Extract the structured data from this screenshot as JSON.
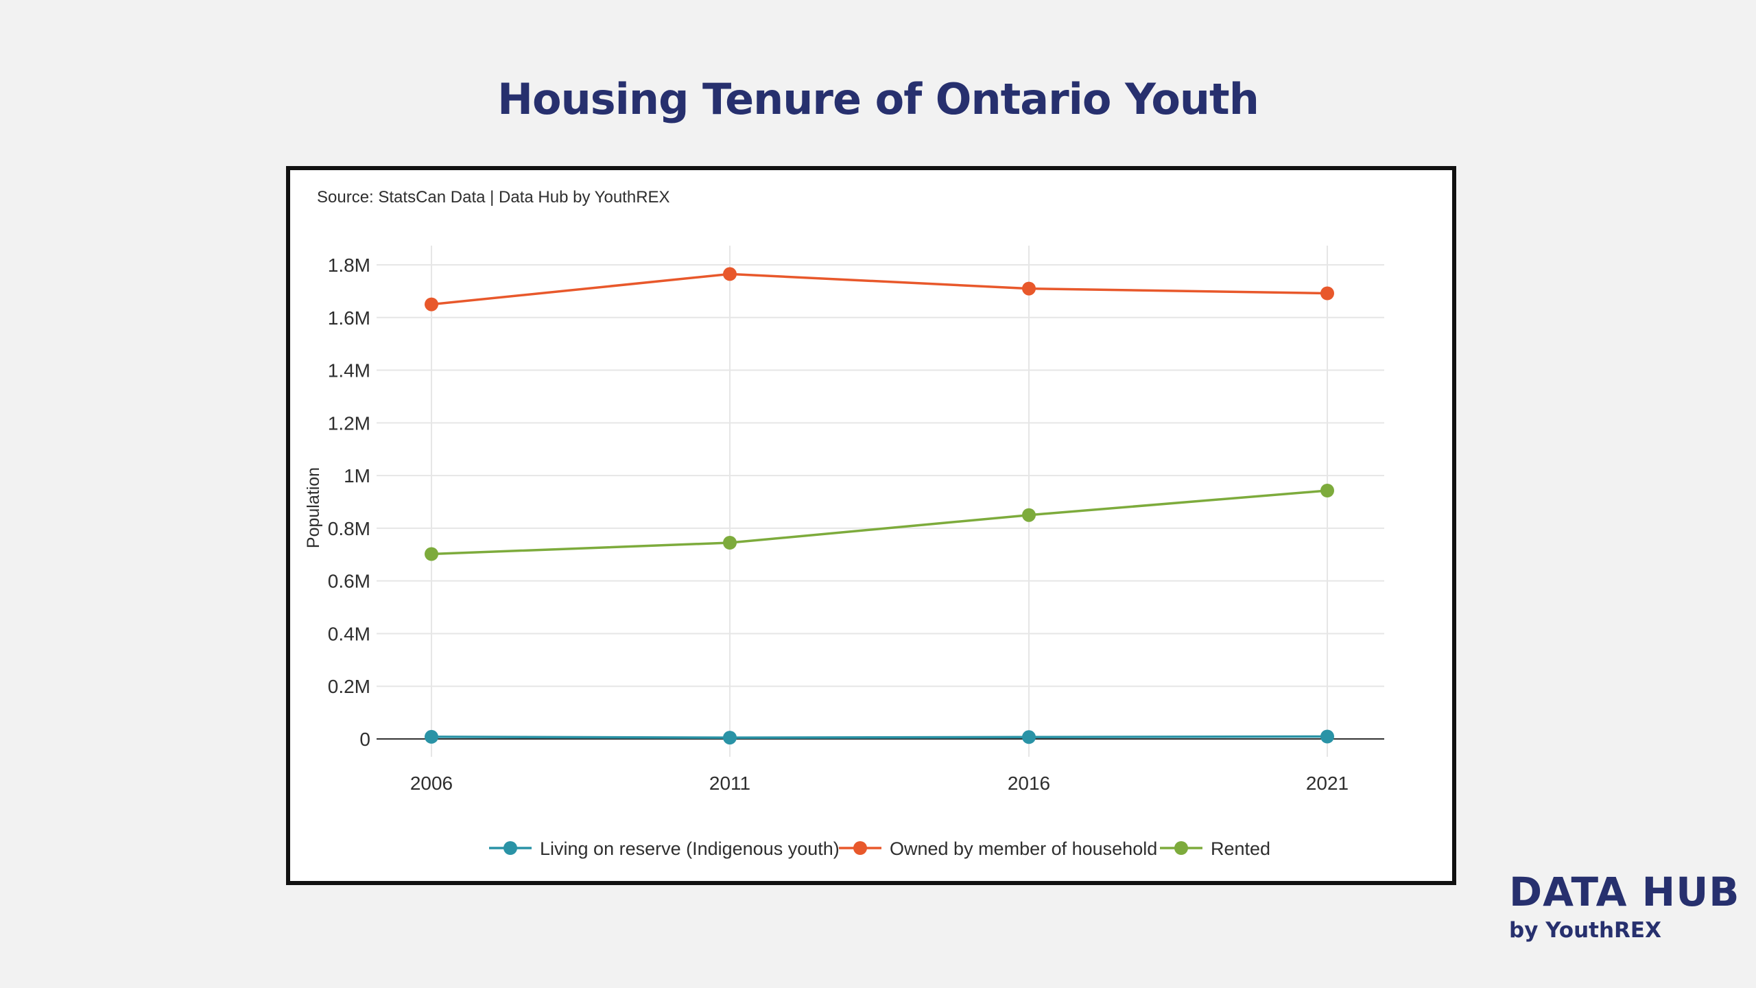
{
  "page": {
    "title": "Housing Tenure of Ontario Youth",
    "source": "Source: StatsCan Data | Data Hub by YouthREX"
  },
  "brand": {
    "main": "DATA HUB",
    "sub": "by YouthREX"
  },
  "chart_data": {
    "type": "line",
    "x": [
      "2006",
      "2011",
      "2016",
      "2021"
    ],
    "ylabel": "Population",
    "xlabel": "",
    "ylim": [
      0,
      1800000
    ],
    "y_ticks": [
      0,
      200000,
      400000,
      600000,
      800000,
      1000000,
      1200000,
      1400000,
      1600000,
      1800000
    ],
    "y_tick_labels": [
      "0",
      "0.2M",
      "0.4M",
      "0.6M",
      "0.8M",
      "1M",
      "1.2M",
      "1.4M",
      "1.6M",
      "1.8M"
    ],
    "grid": true,
    "legend_position": "bottom",
    "series": [
      {
        "name": "Living on reserve (Indigenous youth)",
        "color": "#2a93a6",
        "values": [
          8000,
          5000,
          7000,
          9000
        ]
      },
      {
        "name": "Owned by member of household",
        "color": "#e8582b",
        "values": [
          1650000,
          1765000,
          1710000,
          1692000
        ]
      },
      {
        "name": "Rented",
        "color": "#7dab3c",
        "values": [
          702000,
          745000,
          850000,
          943000
        ]
      }
    ]
  }
}
